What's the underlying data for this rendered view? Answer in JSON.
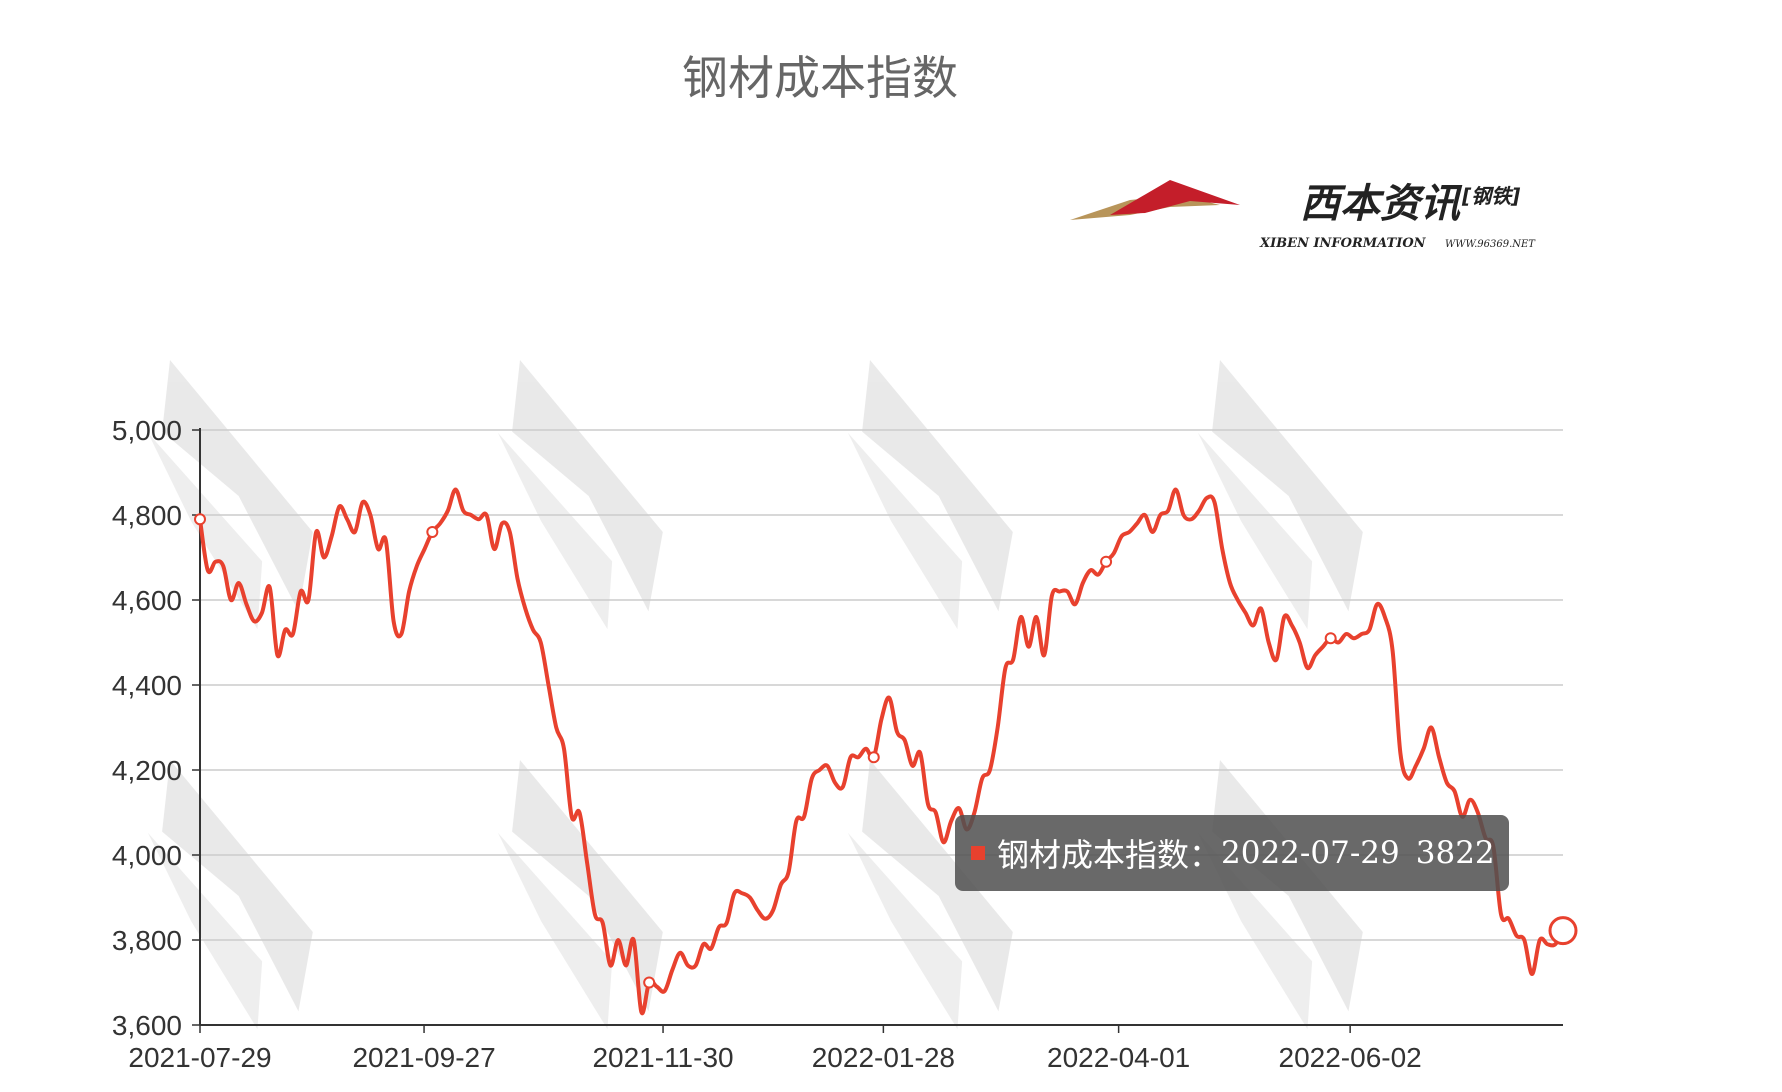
{
  "chart_data": {
    "type": "line",
    "title": "钢材成本指数",
    "xlabel": "",
    "ylabel": "",
    "ylim": [
      3600,
      5000
    ],
    "yticks": [
      "5,000",
      "4,800",
      "4,600",
      "4,400",
      "4,200",
      "4,000",
      "3,800",
      "3,600"
    ],
    "ytick_values": [
      5000,
      4800,
      4600,
      4400,
      4200,
      4000,
      3800,
      3600
    ],
    "xticks": [
      "2021-07-29",
      "2021-09-27",
      "2021-11-30",
      "2022-01-28",
      "2022-04-01",
      "2022-06-02"
    ],
    "grid": true,
    "line_color": "#e8412e",
    "series": [
      {
        "name": "钢材成本指数",
        "x_start": "2021-07-29",
        "x_end": "2022-07-29",
        "values": [
          4790,
          4670,
          4690,
          4680,
          4600,
          4640,
          4590,
          4550,
          4570,
          4630,
          4470,
          4530,
          4520,
          4620,
          4600,
          4760,
          4700,
          4750,
          4820,
          4790,
          4760,
          4830,
          4800,
          4720,
          4740,
          4550,
          4520,
          4620,
          4680,
          4720,
          4760,
          4780,
          4810,
          4860,
          4810,
          4800,
          4790,
          4800,
          4720,
          4780,
          4760,
          4650,
          4580,
          4530,
          4500,
          4400,
          4300,
          4250,
          4090,
          4100,
          3980,
          3860,
          3840,
          3740,
          3800,
          3740,
          3800,
          3630,
          3700,
          3690,
          3680,
          3730,
          3770,
          3740,
          3740,
          3790,
          3780,
          3830,
          3840,
          3910,
          3910,
          3900,
          3870,
          3850,
          3870,
          3930,
          3960,
          4080,
          4090,
          4180,
          4200,
          4210,
          4170,
          4160,
          4230,
          4230,
          4250,
          4230,
          4320,
          4370,
          4290,
          4270,
          4210,
          4240,
          4120,
          4100,
          4030,
          4080,
          4110,
          4060,
          4100,
          4180,
          4200,
          4300,
          4440,
          4460,
          4560,
          4490,
          4560,
          4470,
          4610,
          4620,
          4620,
          4590,
          4640,
          4670,
          4660,
          4690,
          4710,
          4750,
          4760,
          4780,
          4800,
          4760,
          4800,
          4810,
          4860,
          4800,
          4790,
          4810,
          4840,
          4830,
          4720,
          4640,
          4600,
          4570,
          4540,
          4580,
          4500,
          4460,
          4560,
          4540,
          4500,
          4440,
          4470,
          4490,
          4510,
          4500,
          4520,
          4510,
          4520,
          4530,
          4590,
          4560,
          4480,
          4240,
          4180,
          4210,
          4250,
          4300,
          4230,
          4170,
          4150,
          4090,
          4130,
          4100,
          4040,
          4020,
          3860,
          3850,
          3810,
          3800,
          3720,
          3800,
          3790,
          3790,
          3822
        ]
      }
    ],
    "tooltip": {
      "series_name": "钢材成本指数：",
      "date": "2022-07-29",
      "value": "3822"
    }
  },
  "logo": {
    "name_cn": "西本资讯",
    "bracket_text": "[钢铁]",
    "name_en": "XIBEN INFORMATION",
    "url_text": "WWW.96369.NET",
    "red": "#c41e2a",
    "gold": "#b8955a"
  }
}
